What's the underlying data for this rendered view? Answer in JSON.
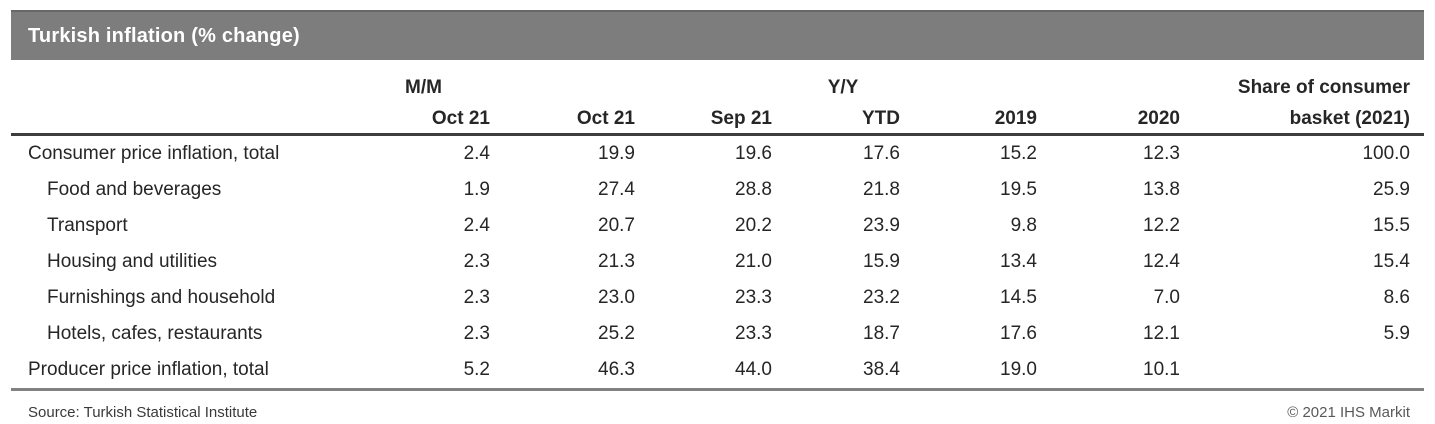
{
  "title_bar": {
    "title": "Turkish inflation (% change)"
  },
  "table": {
    "group_headers": {
      "mm": "M/M",
      "yy": "Y/Y",
      "share_line1": "Share of consumer"
    },
    "column_headers": [
      "Oct 21",
      "Oct 21",
      "Sep 21",
      "YTD",
      "2019",
      "2020",
      "basket (2021)"
    ],
    "rows": [
      {
        "label": "Consumer price inflation, total",
        "values": [
          "2.4",
          "19.9",
          "19.6",
          "17.6",
          "15.2",
          "12.3",
          "100.0"
        ]
      },
      {
        "label": "Food and beverages",
        "values": [
          "1.9",
          "27.4",
          "28.8",
          "21.8",
          "19.5",
          "13.8",
          "25.9"
        ]
      },
      {
        "label": "Transport",
        "values": [
          "2.4",
          "20.7",
          "20.2",
          "23.9",
          "9.8",
          "12.2",
          "15.5"
        ]
      },
      {
        "label": "Housing and utilities",
        "values": [
          "2.3",
          "21.3",
          "21.0",
          "15.9",
          "13.4",
          "12.4",
          "15.4"
        ]
      },
      {
        "label": "Furnishings and household",
        "values": [
          "2.3",
          "23.0",
          "23.3",
          "23.2",
          "14.5",
          "7.0",
          "8.6"
        ]
      },
      {
        "label": "Hotels, cafes, restaurants",
        "values": [
          "2.3",
          "25.2",
          "23.3",
          "18.7",
          "17.6",
          "12.1",
          "5.9"
        ]
      },
      {
        "label": "Producer price inflation, total",
        "values": [
          "5.2",
          "46.3",
          "44.0",
          "38.4",
          "19.0",
          "10.1",
          ""
        ]
      }
    ]
  },
  "footer": {
    "source": "Source: Turkish Statistical Institute",
    "copyright": "© 2021 IHS Markit"
  },
  "colors": {
    "title_bar_bg": "#7d7d7d",
    "title_text": "#ffffff",
    "header_rule": "#3d3d3d",
    "bottom_rule": "#828282",
    "body_text": "#262626"
  },
  "chart_data": {
    "type": "table",
    "title": "Turkish inflation (% change)",
    "column_groups": [
      "M/M",
      "Y/Y",
      "Share of consumer basket (2021)"
    ],
    "columns": [
      "M/M Oct 21",
      "Y/Y Oct 21",
      "Y/Y Sep 21",
      "Y/Y YTD",
      "Y/Y 2019",
      "Y/Y 2020",
      "Share of consumer basket (2021)"
    ],
    "rows": [
      {
        "category": "Consumer price inflation, total",
        "values": [
          2.4,
          19.9,
          19.6,
          17.6,
          15.2,
          12.3,
          100.0
        ]
      },
      {
        "category": "Food and beverages",
        "values": [
          1.9,
          27.4,
          28.8,
          21.8,
          19.5,
          13.8,
          25.9
        ]
      },
      {
        "category": "Transport",
        "values": [
          2.4,
          20.7,
          20.2,
          23.9,
          9.8,
          12.2,
          15.5
        ]
      },
      {
        "category": "Housing and utilities",
        "values": [
          2.3,
          21.3,
          21.0,
          15.9,
          13.4,
          12.4,
          15.4
        ]
      },
      {
        "category": "Furnishings and household",
        "values": [
          2.3,
          23.0,
          23.3,
          23.2,
          14.5,
          7.0,
          8.6
        ]
      },
      {
        "category": "Hotels, cafes, restaurants",
        "values": [
          2.3,
          25.2,
          23.3,
          18.7,
          17.6,
          12.1,
          5.9
        ]
      },
      {
        "category": "Producer price inflation, total",
        "values": [
          5.2,
          46.3,
          44.0,
          38.4,
          19.0,
          10.1,
          null
        ]
      }
    ],
    "source": "Turkish Statistical Institute",
    "copyright": "© 2021 IHS Markit"
  }
}
